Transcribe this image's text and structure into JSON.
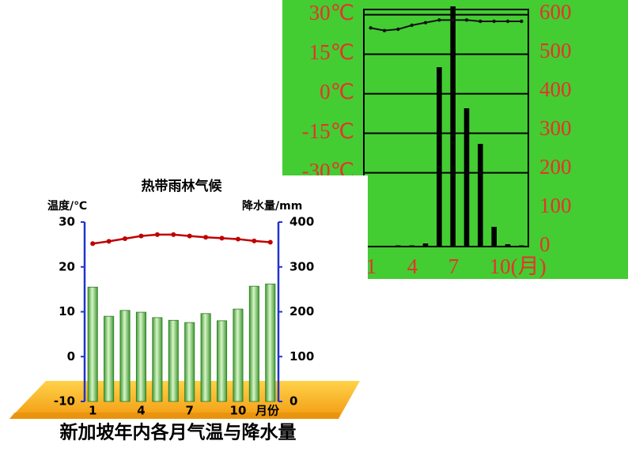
{
  "chart_data": [
    {
      "type": "combo",
      "categories": [
        "1",
        null,
        null,
        "4",
        null,
        null,
        "7",
        null,
        null,
        "10(月)",
        null,
        null
      ],
      "ylim": [
        -58,
        32
      ],
      "yticks": [
        {
          "value": 30,
          "label": "30℃"
        },
        {
          "value": 15,
          "label": "15℃"
        },
        {
          "value": 0,
          "label": "0℃"
        },
        {
          "value": -15,
          "label": "-15℃"
        },
        {
          "value": -30,
          "label": "-30℃"
        }
      ],
      "y2lim": [
        0,
        612
      ],
      "y2ticks": [
        0,
        100,
        200,
        300,
        400,
        500,
        600
      ],
      "grid": true,
      "background": "#44cc33",
      "label_color": "#e8322a",
      "series": [
        {
          "type": "line",
          "color": "#111111",
          "values": [
            25,
            24,
            24.5,
            26,
            27,
            28,
            28,
            28,
            27.5,
            27.5,
            27.5,
            27.5
          ]
        },
        {
          "type": "bar",
          "axis": "y2",
          "color": "#000000",
          "values": [
            2,
            2,
            3,
            3,
            8,
            463,
            620,
            357,
            265,
            51,
            6,
            3
          ]
        }
      ]
    },
    {
      "type": "combo",
      "title": "热带雨林气候",
      "y_label": "温度/℃",
      "y2_label": "降水量/mm",
      "x_label": "月份",
      "categories": [
        "1",
        null,
        null,
        "4",
        null,
        null,
        "7",
        null,
        null,
        "10",
        null,
        null
      ],
      "ylim": [
        -10,
        30
      ],
      "yticks": [
        -10,
        0,
        10,
        20,
        30
      ],
      "y2lim": [
        0,
        400
      ],
      "y2ticks": [
        0,
        100,
        200,
        300,
        400
      ],
      "grid": false,
      "background": "#ffffff",
      "label_color": "#000000",
      "series": [
        {
          "type": "line",
          "color": "#c00000",
          "values": [
            25.2,
            25.7,
            26.3,
            26.9,
            27.2,
            27.2,
            26.9,
            26.6,
            26.4,
            26.2,
            25.8,
            25.5
          ]
        },
        {
          "type": "bar",
          "axis": "y2",
          "color": "#5cbf4a",
          "values": [
            255,
            190,
            203,
            199,
            187,
            181,
            176,
            196,
            180,
            206,
            257,
            262
          ]
        }
      ]
    }
  ],
  "caption": "新加坡年内各月气温与降水量"
}
